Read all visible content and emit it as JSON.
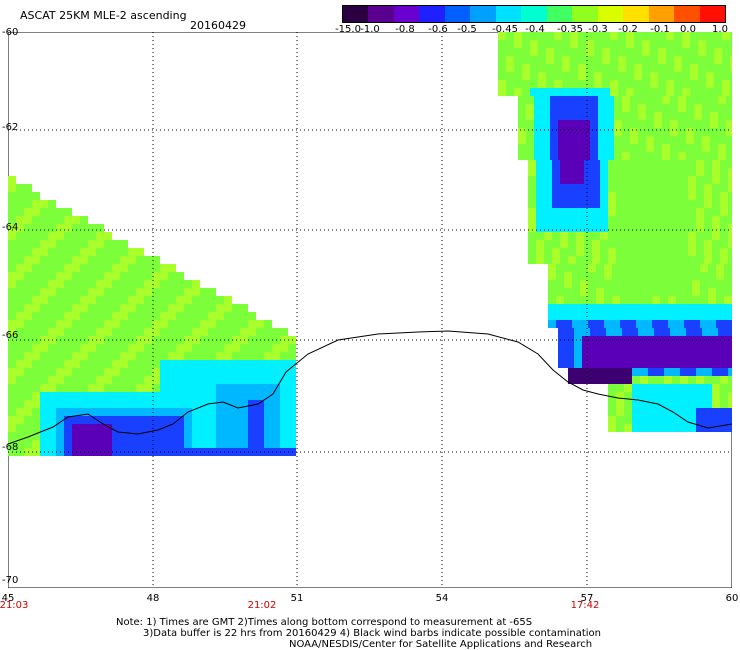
{
  "header": {
    "title": "ASCAT 25KM MLE-2 ascending",
    "date": "20160429"
  },
  "colorbar": {
    "labels": [
      "-15.0",
      "-1.0",
      "-0.8",
      "-0.6",
      "-0.5",
      "-0.45",
      "-0.4",
      "-0.35",
      "-0.3",
      "-0.2",
      "-0.1",
      "0.0",
      "1.0"
    ],
    "colors": [
      "#2a0040",
      "#5a0090",
      "#6a00d0",
      "#2020ff",
      "#0060ff",
      "#00a0ff",
      "#00e0ff",
      "#00ffd0",
      "#40ff60",
      "#90ff20",
      "#d8ff00",
      "#ffe000",
      "#ffa000",
      "#ff5000",
      "#ff1000"
    ]
  },
  "map": {
    "lat_labels": [
      "-60",
      "-62",
      "-64",
      "-66",
      "-68",
      "-70"
    ],
    "lon_labels": [
      "45",
      "48",
      "51",
      "54",
      "57",
      "60"
    ],
    "time_labels": [
      "21:03",
      "21:02",
      "17:42"
    ],
    "colors": {
      "green": "#7cff3a",
      "light_green": "#a8ff2a",
      "cyan": "#00f0ff",
      "sky": "#00b8ff",
      "blue": "#1a40ff",
      "purple": "#5a00b8",
      "dark_purple": "#3c0070",
      "coast": "#000000",
      "grid": "#000000",
      "time_label": "#cc0000"
    }
  },
  "notes": {
    "line1": "Note: 1) Times are GMT 2)Times along bottom correspond to measurement at -65S",
    "line2": "3)Data buffer is 22 hrs from 20160429 4) Black wind barbs indicate possible contamination",
    "line3": "NOAA/NESDIS/Center for Satellite Applications and Research"
  }
}
